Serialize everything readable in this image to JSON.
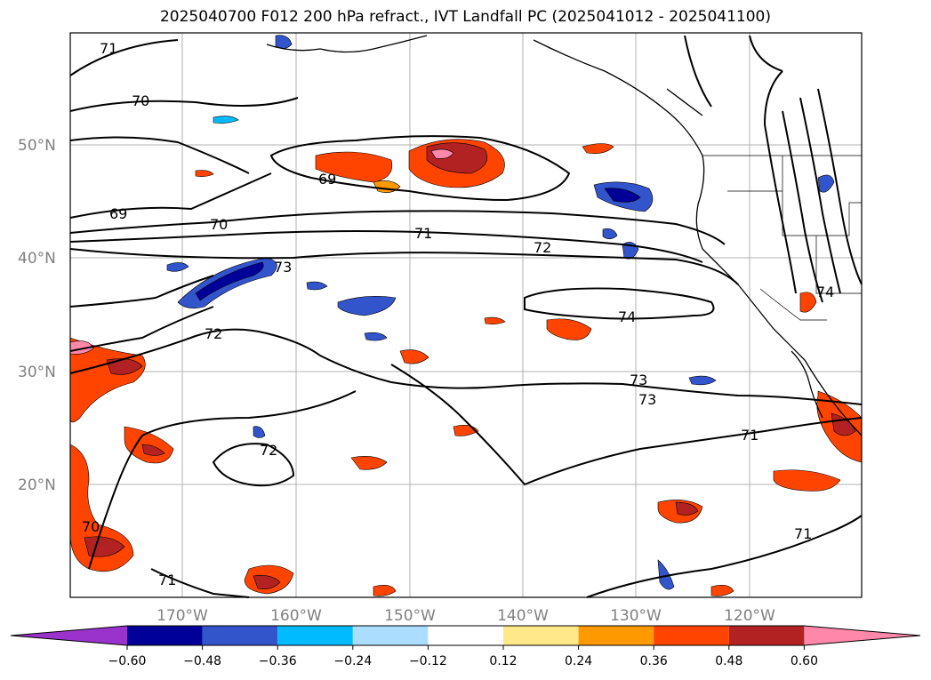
{
  "title": "2025040700 F012 200 hPa refract., IVT Landfall PC (2025041012 - 2025041100)",
  "lat_labels": [
    "50°N",
    "40°N",
    "30°N",
    "20°N"
  ],
  "lon_labels": [
    "170°W",
    "160°W",
    "150°W",
    "140°W",
    "130°W",
    "120°W"
  ],
  "contour_labels": [
    "71",
    "70",
    "69",
    "69",
    "70",
    "71",
    "72",
    "73",
    "74",
    "74",
    "72",
    "73",
    "73",
    "71",
    "72",
    "70",
    "71",
    "71"
  ],
  "colorbar": {
    "ticks": [
      "−0.60",
      "−0.48",
      "−0.36",
      "−0.24",
      "−0.12",
      "0.12",
      "0.24",
      "0.36",
      "0.48",
      "0.60"
    ],
    "colors": [
      "#9933cc",
      "#000099",
      "#3355cc",
      "#00bbff",
      "#aaddff",
      "#ffffff",
      "#ffe88a",
      "#ff9900",
      "#ff4400",
      "#b22222",
      "#ff88aa"
    ]
  },
  "colors": {
    "grid": "#b0b0b0",
    "contour": "#000000",
    "coast": "#000000"
  }
}
